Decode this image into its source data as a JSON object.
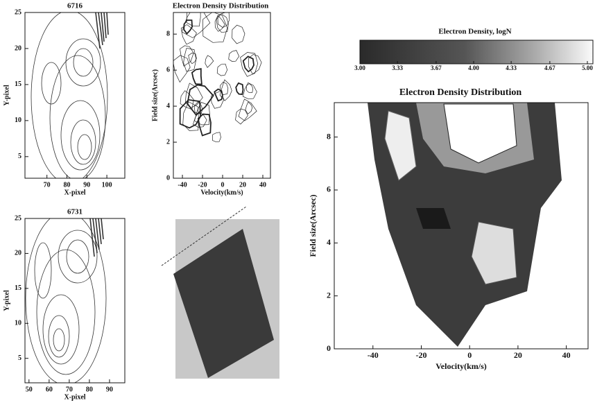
{
  "chart_data": [
    {
      "type": "contour",
      "title": "6716",
      "xlabel": "X-pixel",
      "ylabel": "Y-pixel",
      "xlim": [
        59,
        109
      ],
      "xticks": [
        70,
        80,
        90,
        100
      ],
      "ylim": [
        2,
        25
      ],
      "yticks": [
        5,
        10,
        15,
        20,
        25
      ]
    },
    {
      "type": "contour",
      "title": "Electron Density Distribution",
      "xlabel": "Velocity(km/s)",
      "ylabel": "Field size(Arcsec)",
      "xlim": [
        -49,
        47.6
      ],
      "xticks": [
        -40,
        -20,
        0,
        20,
        40
      ],
      "ylim": [
        0,
        9.2
      ],
      "yticks": [
        0,
        2,
        4,
        6,
        8
      ]
    },
    {
      "type": "contour",
      "title": "6731",
      "xlabel": "X-pixel",
      "ylabel": "Y-pixel",
      "xlim": [
        48,
        97.6
      ],
      "xticks": [
        50,
        60,
        70,
        80,
        90
      ],
      "ylim": [
        1.5,
        25
      ],
      "yticks": [
        5,
        10,
        15,
        20,
        25
      ]
    },
    {
      "type": "colorbar",
      "title": "Electron Density, logN",
      "lim": [
        3,
        5
      ],
      "ticks": [
        {
          "value": 3,
          "label": "3.00"
        },
        {
          "value": 3.33,
          "label": "3.33"
        },
        {
          "value": 3.67,
          "label": "3.67"
        },
        {
          "value": 4,
          "label": "4.00"
        },
        {
          "value": 4.33,
          "label": "4.33"
        },
        {
          "value": 4.67,
          "label": "4.67"
        },
        {
          "value": 5,
          "label": "5.00"
        }
      ]
    },
    {
      "type": "contour",
      "title": "Electron Density Distribution",
      "xlabel": "Velocity(km/s)",
      "ylabel": "Field size(Arcsec)",
      "xlim": [
        -56,
        49
      ],
      "xticks": [
        -40,
        -20,
        0,
        20,
        40
      ],
      "ylim": [
        0,
        9.3
      ],
      "yticks": [
        0,
        2,
        4,
        6,
        8
      ]
    }
  ]
}
